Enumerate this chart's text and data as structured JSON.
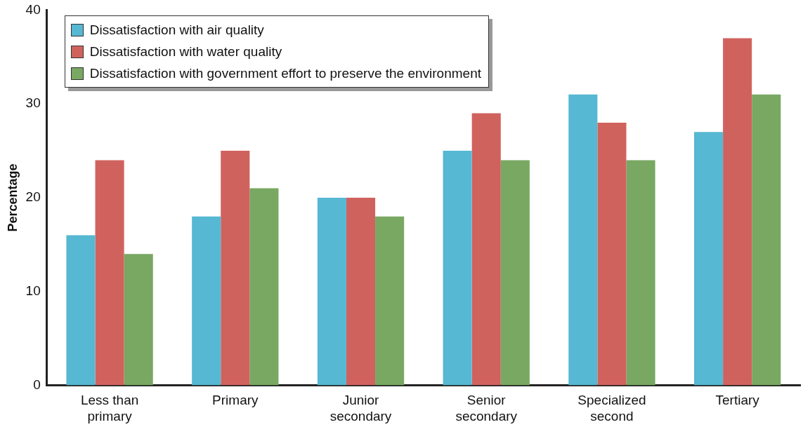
{
  "chart_data": {
    "type": "bar",
    "ylabel": "Percentage",
    "categories": [
      "Less than primary",
      "Primary",
      "Junior secondary",
      "Senior secondary",
      "Specialized second",
      "Tertiary"
    ],
    "series": [
      {
        "name": "Dissatisfaction with air quality",
        "color": "#56b8d2",
        "values": [
          16,
          18,
          20,
          25,
          31,
          27
        ]
      },
      {
        "name": "Dissatisfaction with water quality",
        "color": "#d0625e",
        "values": [
          24,
          25,
          20,
          29,
          28,
          37
        ]
      },
      {
        "name": "Dissatisfaction with government effort to preserve the environment",
        "color": "#78a862",
        "values": [
          14,
          21,
          18,
          24,
          24,
          31
        ]
      }
    ],
    "ylim": [
      0,
      40
    ],
    "yticks": [
      0,
      10,
      20,
      30,
      40
    ],
    "grid": false,
    "legend": "top left"
  }
}
